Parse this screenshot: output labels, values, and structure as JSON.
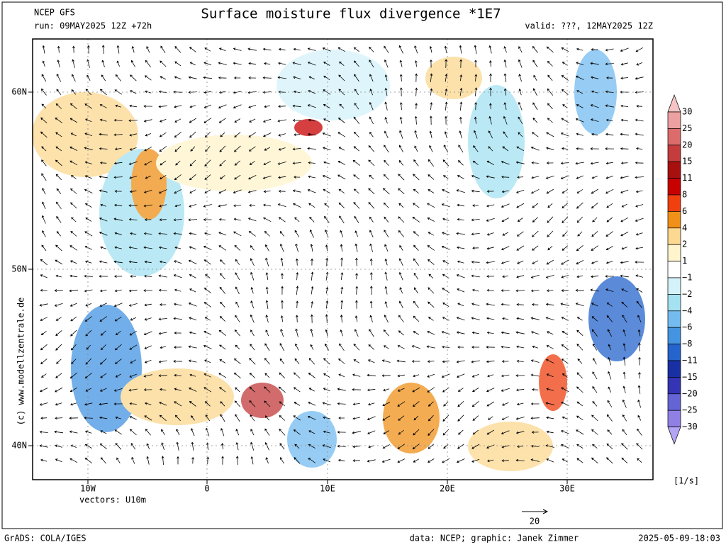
{
  "header": {
    "model": "NCEP GFS",
    "run": "run: 09MAY2025 12Z +72h",
    "title": "Surface moisture flux divergence *1E7",
    "valid": "valid: ???, 12MAY2025 12Z"
  },
  "map": {
    "lat_labels": [
      "60N",
      "50N",
      "40N"
    ],
    "lon_labels": [
      "10W",
      "0",
      "10E",
      "20E",
      "30E"
    ],
    "copyright": "(c)  www.modellzentrale.de",
    "vectors": "vectors: U10m",
    "vector_scale": "20"
  },
  "colorbar": {
    "labels": [
      "30",
      "25",
      "20",
      "15",
      "11",
      "8",
      "6",
      "4",
      "2",
      "1",
      "−1",
      "−2",
      "−4",
      "−6",
      "−8",
      "−11",
      "−15",
      "−20",
      "−25",
      "−30"
    ],
    "colors": [
      "#f6c4c4",
      "#eca0a0",
      "#dc6c6c",
      "#c43c3c",
      "#a81010",
      "#c80000",
      "#f04010",
      "#f09018",
      "#fcd890",
      "#fff4cc",
      "#ffffff",
      "#d4f2fa",
      "#a4e2f2",
      "#74bcf0",
      "#4494e2",
      "#2464cc",
      "#1830a4",
      "#3434b4",
      "#6464d4",
      "#9080e4",
      "#b4a4f4"
    ],
    "units": "[1/s]"
  },
  "footer": {
    "software": "GrADS: COLA/IGES",
    "credits": "data: NCEP; graphic: Janek Zimmer",
    "timestamp": "2025-05-09-18:03"
  }
}
